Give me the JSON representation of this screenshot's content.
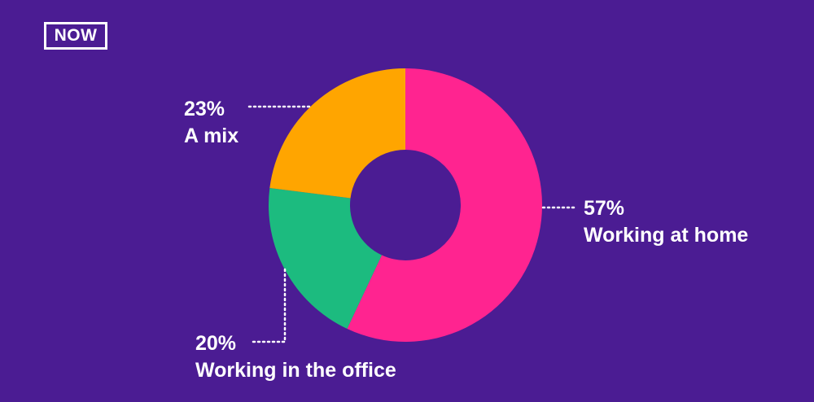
{
  "brand": {
    "logo_text": "NOW"
  },
  "colors": {
    "background": "#4b1c93",
    "text": "#ffffff",
    "working_at_home": "#ff2490",
    "working_in_the_office": "#1cbb7f",
    "a_mix": "#ffa500"
  },
  "chart_data": {
    "type": "pie",
    "donut": true,
    "title": "",
    "slices": [
      {
        "label": "Working at home",
        "value": 57,
        "display": "57%",
        "color": "#ff2490"
      },
      {
        "label": "Working in the office",
        "value": 20,
        "display": "20%",
        "color": "#1cbb7f"
      },
      {
        "label": "A mix",
        "value": 23,
        "display": "23%",
        "color": "#ffa500"
      }
    ]
  }
}
